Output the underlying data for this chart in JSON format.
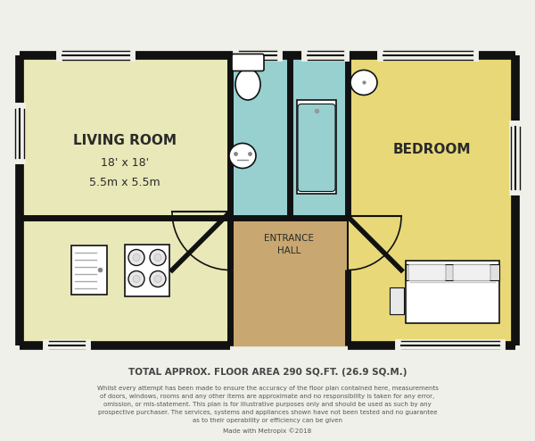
{
  "bg_color": "#f0f0ea",
  "wall_color": "#111111",
  "living_room_color": "#e8e8b8",
  "bedroom_color": "#e8d878",
  "bathroom_color": "#98d0d0",
  "hall_color": "#c8a870",
  "title_text": "TOTAL APPROX. FLOOR AREA 290 SQ.FT. (26.9 SQ.M.)",
  "disclaimer_line1": "Whilst every attempt has been made to ensure the accuracy of the floor plan contained here, measurements",
  "disclaimer_line2": "of doors, windows, rooms and any other items are approximate and no responsibility is taken for any error,",
  "disclaimer_line3": "omission, or mis-statement. This plan is for illustrative purposes only and should be used as such by any",
  "disclaimer_line4": "prospective purchaser. The services, systems and appliances shown have not been tested and no guarantee",
  "disclaimer_line5": "as to their operability or efficiency can be given",
  "credit_text": "Made with Metropix ©2018",
  "living_room_label": "LIVING ROOM",
  "living_room_size": "18' x 18'",
  "living_room_metric": "5.5m x 5.5m",
  "bedroom_label": "BEDROOM",
  "hall_label": "ENTRANCE\nHALL"
}
